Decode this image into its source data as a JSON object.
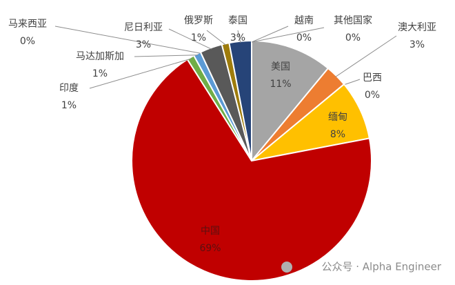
{
  "chart_data": {
    "type": "pie",
    "categories": [
      "美国",
      "澳大利亚",
      "巴西",
      "缅甸",
      "中国",
      "印度",
      "马达加斯加",
      "马来西亚",
      "尼日利亚",
      "俄罗斯",
      "泰国",
      "越南",
      "其他国家"
    ],
    "values": [
      11,
      3,
      0,
      8,
      69,
      1,
      1,
      0,
      3,
      1,
      3,
      0,
      0
    ],
    "value_labels": [
      "11%",
      "3%",
      "0%",
      "8%",
      "69%",
      "1%",
      "1%",
      "0%",
      "3%",
      "1%",
      "3%",
      "0%",
      "0%"
    ],
    "colors": [
      "#a5a5a5",
      "#ed7d31",
      "#4472c4",
      "#ffc000",
      "#c00000",
      "#70ad47",
      "#5b9bd5",
      "#264478",
      "#595959",
      "#9e7c0c",
      "#264478",
      "#636363",
      "#997300"
    ]
  },
  "watermark": "公众号 · Alpha Engineer"
}
